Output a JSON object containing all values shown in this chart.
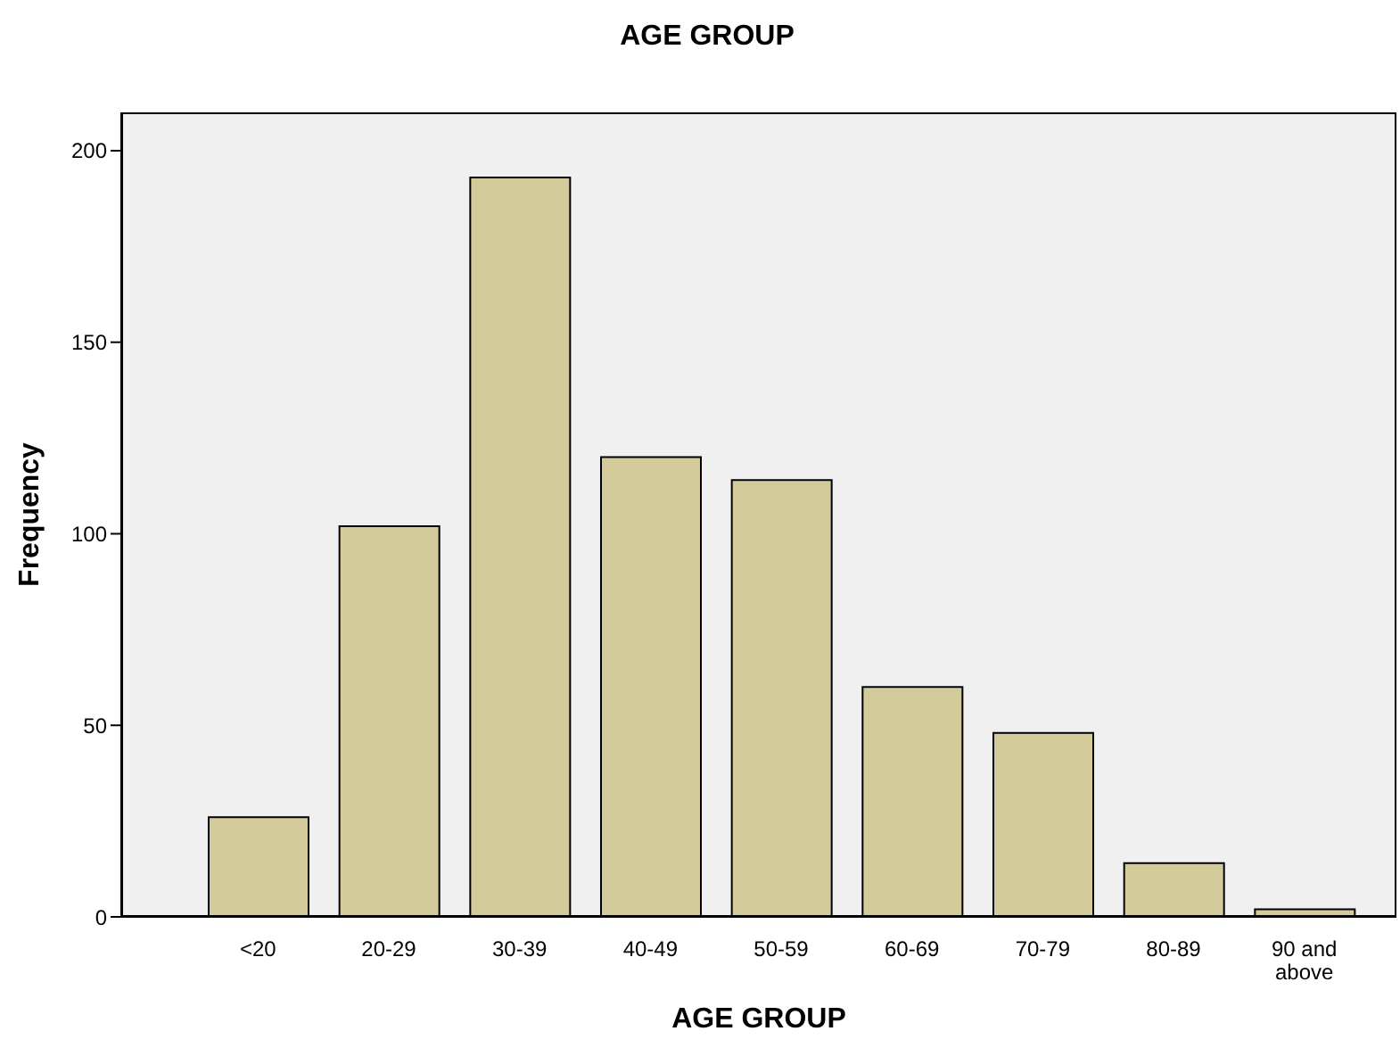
{
  "chart_data": {
    "type": "bar",
    "title": "AGE GROUP",
    "xlabel": "AGE GROUP",
    "ylabel": "Frequency",
    "categories": [
      "<20",
      "20-29",
      "30-39",
      "40-49",
      "50-59",
      "60-69",
      "70-79",
      "80-89",
      "90 and above"
    ],
    "values": [
      26,
      102,
      193,
      120,
      114,
      60,
      48,
      14,
      2
    ],
    "color": "#d3cc9a",
    "ylim": [
      0,
      210
    ],
    "yticks": [
      0,
      50,
      100,
      150,
      200
    ],
    "grid": false
  }
}
